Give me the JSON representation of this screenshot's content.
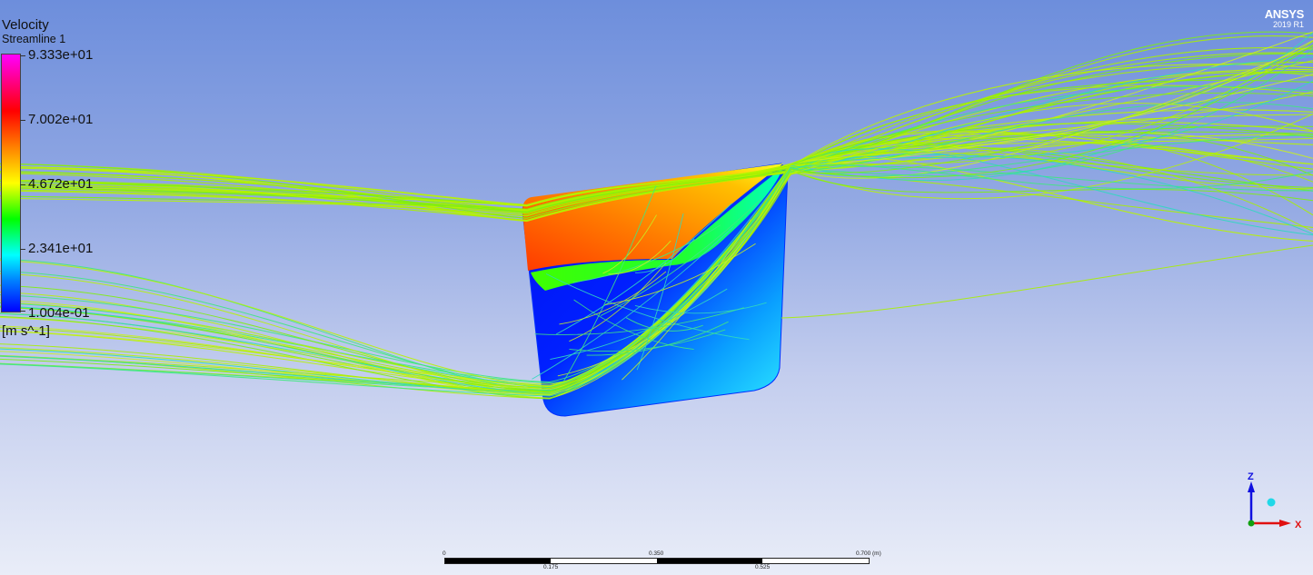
{
  "legend": {
    "title": "Velocity",
    "subtitle": "Streamline 1",
    "ticks": [
      "9.333e+01",
      "7.002e+01",
      "4.672e+01",
      "2.341e+01",
      "1.004e-01"
    ],
    "units": "[m s^-1]",
    "colormap": [
      "#ff00ff",
      "#ff0000",
      "#ff8000",
      "#ffff00",
      "#00ff00",
      "#00ffff",
      "#0080ff",
      "#0000ff"
    ]
  },
  "logo": {
    "brand": "ANSYS",
    "version": "2019 R1"
  },
  "scale_bar": {
    "top_labels": [
      "0",
      "0.350",
      "0.700"
    ],
    "unit": "(m)",
    "bottom_labels": [
      "0.175",
      "0.525"
    ]
  },
  "axes": {
    "z_label": "Z",
    "x_label": "X",
    "z_color": "#1010e0",
    "x_color": "#e01010",
    "y_color": "#10a010"
  },
  "colors": {
    "background_top": "#6d8edc",
    "background_bottom": "#e9edf8",
    "streamline": "#a8f000"
  }
}
